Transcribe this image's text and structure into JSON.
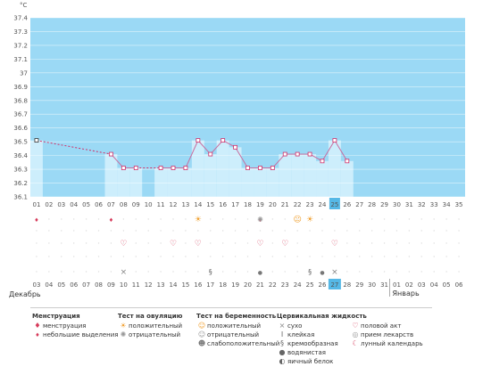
{
  "chart_data": {
    "type": "line",
    "unit": "°C",
    "y_ticks": [
      "37.4",
      "37.3",
      "37.2",
      "37.1",
      "37",
      "36.9",
      "36.8",
      "36.7",
      "36.6",
      "36.5",
      "36.4",
      "36.3",
      "36.2",
      "36.1"
    ],
    "ylim": [
      36.1,
      37.4
    ],
    "cycle_days": [
      "01",
      "02",
      "03",
      "04",
      "05",
      "06",
      "07",
      "08",
      "09",
      "10",
      "11",
      "12",
      "13",
      "14",
      "15",
      "16",
      "17",
      "18",
      "19",
      "20",
      "21",
      "22",
      "23",
      "24",
      "25",
      "26",
      "27",
      "28",
      "29",
      "30",
      "31",
      "32",
      "33",
      "34",
      "35"
    ],
    "highlight_day": "25",
    "temperatures": [
      {
        "day": 1,
        "t": 36.51
      },
      {
        "day": 7,
        "t": 36.41
      },
      {
        "day": 8,
        "t": 36.31
      },
      {
        "day": 9,
        "t": 36.31
      },
      {
        "day": 11,
        "t": 36.31
      },
      {
        "day": 12,
        "t": 36.31
      },
      {
        "day": 13,
        "t": 36.31
      },
      {
        "day": 14,
        "t": 36.51
      },
      {
        "day": 15,
        "t": 36.41
      },
      {
        "day": 16,
        "t": 36.51
      },
      {
        "day": 17,
        "t": 36.46
      },
      {
        "day": 18,
        "t": 36.31
      },
      {
        "day": 19,
        "t": 36.31
      },
      {
        "day": 20,
        "t": 36.31
      },
      {
        "day": 21,
        "t": 36.41
      },
      {
        "day": 22,
        "t": 36.41
      },
      {
        "day": 23,
        "t": 36.41
      },
      {
        "day": 24,
        "t": 36.36
      },
      {
        "day": 25,
        "t": 36.51
      },
      {
        "day": 26,
        "t": 36.36
      }
    ],
    "gaps": [
      {
        "from": 1,
        "to": 7
      },
      {
        "from": 9,
        "to": 11
      }
    ],
    "calendar_dates": [
      "03",
      "04",
      "05",
      "06",
      "07",
      "08",
      "09",
      "10",
      "11",
      "12",
      "13",
      "14",
      "15",
      "16",
      "17",
      "18",
      "19",
      "20",
      "21",
      "22",
      "23",
      "24",
      "25",
      "26",
      "27",
      "28",
      "29",
      "30",
      "31",
      "01",
      "02",
      "03",
      "04",
      "05",
      "06"
    ],
    "red_dates_index": [
      0,
      1,
      7,
      8,
      14,
      15,
      21,
      22,
      28,
      29
    ],
    "highlight_date_index": 24,
    "month_start": "Декабрь",
    "month_next": "Январь",
    "next_month_index": 29,
    "markers": {
      "bleeding": [
        1,
        7,
        19
      ],
      "ovulation_positive": [
        14,
        23
      ],
      "ovulation_negative": [
        19
      ],
      "pregnancy_positive": [
        22
      ],
      "intercourse": [
        8,
        12,
        14,
        19,
        21,
        25
      ],
      "dry": [
        8,
        25
      ],
      "creamy": [
        15,
        23
      ],
      "watery": [
        19,
        24
      ]
    },
    "colors": {
      "bg": "#9bd9f5",
      "fill": "#cdeefc",
      "line": "#c86ea0",
      "dash": "#d0306a",
      "grid": "#d6d6d6",
      "red": "#d63a5a",
      "highlight": "#55b8e6"
    }
  },
  "legend": {
    "menstruation": {
      "title": "Менструация",
      "items": [
        "менструация",
        "небольшие выделения"
      ]
    },
    "ovulation_test": {
      "title": "Тест на овуляцию",
      "items": [
        "положительный",
        "отрицательный"
      ]
    },
    "pregnancy_test": {
      "title": "Тест на беременность",
      "items": [
        "положительный",
        "отрицательный",
        "слабоположительный"
      ]
    },
    "cervical": {
      "title": "Цервикальная жидкость",
      "items": [
        "сухо",
        "клейкая",
        "кремообразная",
        "водянистая",
        "яичный белок"
      ]
    },
    "extra": {
      "items": [
        "половой акт",
        "прием лекарств",
        "лунный календарь"
      ]
    }
  }
}
